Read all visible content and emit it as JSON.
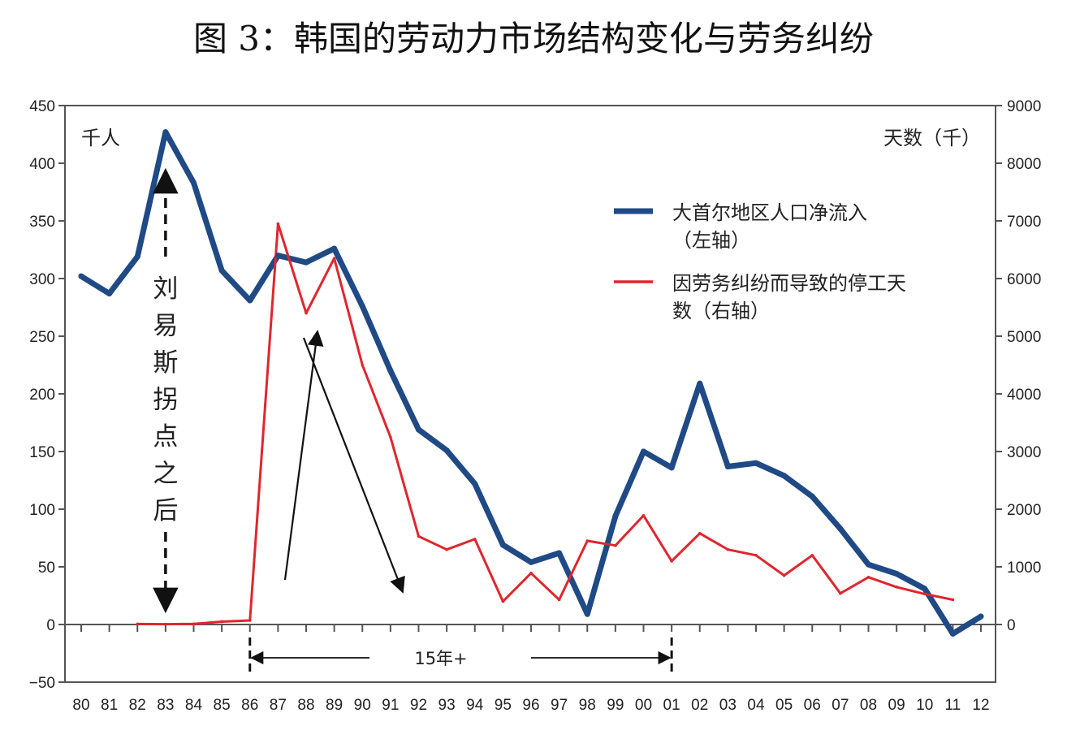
{
  "chart_data": {
    "type": "line",
    "title": "图 3：韩国的劳动力市场结构变化与劳务纠纷",
    "left_axis_unit": "千人",
    "right_axis_unit": "天数（千）",
    "categories": [
      "80",
      "81",
      "82",
      "83",
      "84",
      "85",
      "86",
      "87",
      "88",
      "89",
      "90",
      "91",
      "92",
      "93",
      "94",
      "95",
      "96",
      "97",
      "98",
      "99",
      "00",
      "01",
      "02",
      "03",
      "04",
      "05",
      "06",
      "07",
      "08",
      "09",
      "10",
      "11",
      "12"
    ],
    "ylim_left": [
      -50,
      450
    ],
    "yticks_left": [
      -50,
      0,
      50,
      100,
      150,
      200,
      250,
      300,
      350,
      400,
      450
    ],
    "ylim_right": [
      -1000,
      9000
    ],
    "yticks_right": [
      0,
      1000,
      2000,
      3000,
      4000,
      5000,
      6000,
      7000,
      8000,
      9000
    ],
    "series": [
      {
        "name": "大首尔地区人口净流入",
        "name_line2": "（左轴）",
        "axis": "left",
        "color": "#1f4a85",
        "values": [
          302,
          287,
          319,
          427,
          383,
          307,
          281,
          320,
          314,
          326,
          276,
          220,
          169,
          151,
          122,
          69,
          54,
          62,
          9,
          94,
          150,
          136,
          209,
          137,
          140,
          129,
          111,
          83,
          52,
          44,
          31,
          -8,
          7
        ]
      },
      {
        "name": "因劳务纠纷而导致的停工天",
        "name_line2": "数（右轴）",
        "axis": "right",
        "color": "#e0262e",
        "values": [
          null,
          null,
          8,
          5,
          10,
          50,
          70,
          6950,
          5400,
          6350,
          4500,
          3250,
          1530,
          1300,
          1480,
          400,
          890,
          430,
          1450,
          1370,
          1890,
          1100,
          1580,
          1300,
          1200,
          850,
          1200,
          540,
          820,
          650,
          530,
          430,
          null
        ]
      }
    ],
    "annotations": {
      "lewis": "刘易斯拐点之后",
      "span": "15年+"
    }
  }
}
